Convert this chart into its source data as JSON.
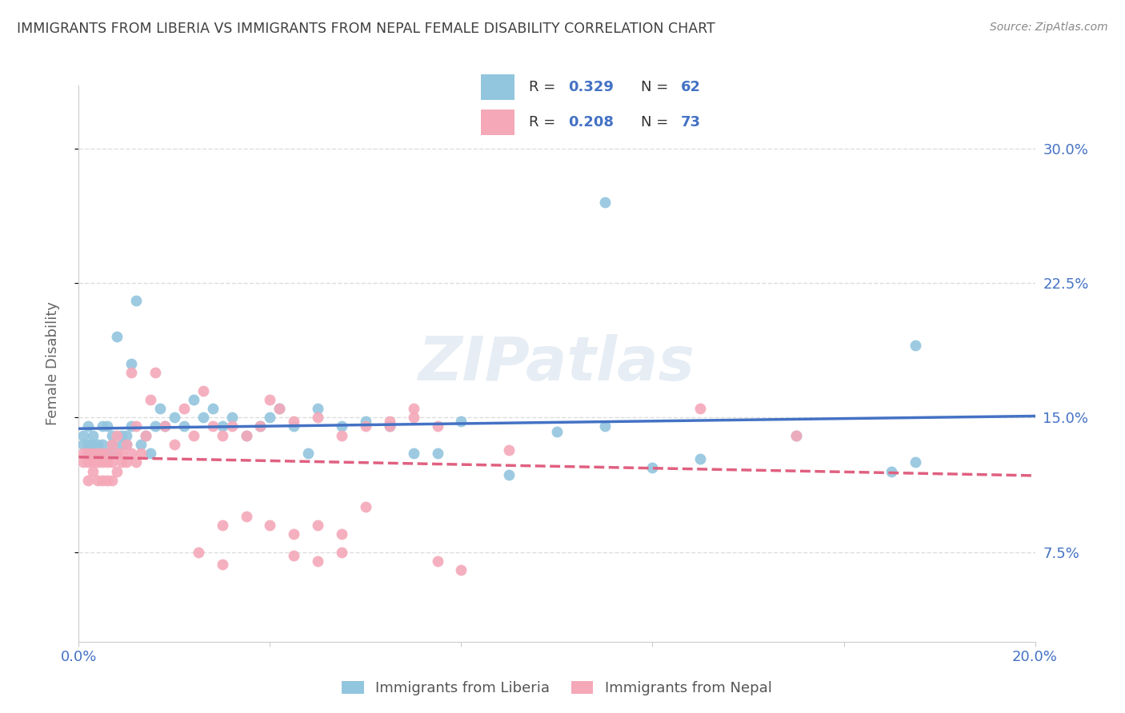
{
  "title": "IMMIGRANTS FROM LIBERIA VS IMMIGRANTS FROM NEPAL FEMALE DISABILITY CORRELATION CHART",
  "source": "Source: ZipAtlas.com",
  "ylabel": "Female Disability",
  "yticks": [
    "7.5%",
    "15.0%",
    "22.5%",
    "30.0%"
  ],
  "ytick_vals": [
    0.075,
    0.15,
    0.225,
    0.3
  ],
  "xlim": [
    0.0,
    0.2
  ],
  "ylim": [
    0.025,
    0.335
  ],
  "liberia_color": "#92c5de",
  "liberia_line_color": "#4472c4",
  "nepal_color": "#f4a8b8",
  "nepal_line_color": "#e06080",
  "liberia_R": 0.329,
  "liberia_N": 62,
  "nepal_R": 0.208,
  "nepal_N": 73,
  "legend_liberia": "Immigrants from Liberia",
  "legend_nepal": "Immigrants from Nepal",
  "background_color": "#ffffff",
  "grid_color": "#dddddd",
  "text_color_blue": "#4472c4",
  "title_color": "#404040",
  "watermark": "ZIPatlas",
  "liberia_x": [
    0.001,
    0.001,
    0.002,
    0.002,
    0.002,
    0.003,
    0.003,
    0.003,
    0.004,
    0.004,
    0.005,
    0.005,
    0.005,
    0.006,
    0.006,
    0.007,
    0.007,
    0.008,
    0.008,
    0.009,
    0.009,
    0.01,
    0.01,
    0.011,
    0.011,
    0.012,
    0.013,
    0.014,
    0.015,
    0.016,
    0.017,
    0.018,
    0.02,
    0.022,
    0.024,
    0.026,
    0.028,
    0.03,
    0.032,
    0.035,
    0.038,
    0.04,
    0.042,
    0.045,
    0.048,
    0.05,
    0.055,
    0.06,
    0.065,
    0.07,
    0.075,
    0.08,
    0.09,
    0.1,
    0.11,
    0.12,
    0.13,
    0.15,
    0.17,
    0.175,
    0.11,
    0.175
  ],
  "liberia_y": [
    0.14,
    0.135,
    0.145,
    0.13,
    0.135,
    0.135,
    0.13,
    0.14,
    0.13,
    0.135,
    0.145,
    0.13,
    0.135,
    0.145,
    0.13,
    0.135,
    0.14,
    0.195,
    0.13,
    0.135,
    0.14,
    0.135,
    0.14,
    0.145,
    0.18,
    0.215,
    0.135,
    0.14,
    0.13,
    0.145,
    0.155,
    0.145,
    0.15,
    0.145,
    0.16,
    0.15,
    0.155,
    0.145,
    0.15,
    0.14,
    0.145,
    0.15,
    0.155,
    0.145,
    0.13,
    0.155,
    0.145,
    0.148,
    0.145,
    0.13,
    0.13,
    0.148,
    0.118,
    0.142,
    0.145,
    0.122,
    0.127,
    0.14,
    0.12,
    0.19,
    0.27,
    0.125
  ],
  "nepal_x": [
    0.001,
    0.001,
    0.002,
    0.002,
    0.002,
    0.003,
    0.003,
    0.003,
    0.004,
    0.004,
    0.004,
    0.005,
    0.005,
    0.005,
    0.006,
    0.006,
    0.006,
    0.007,
    0.007,
    0.007,
    0.008,
    0.008,
    0.008,
    0.009,
    0.009,
    0.01,
    0.01,
    0.011,
    0.011,
    0.012,
    0.012,
    0.013,
    0.014,
    0.015,
    0.016,
    0.018,
    0.02,
    0.022,
    0.024,
    0.026,
    0.028,
    0.03,
    0.032,
    0.035,
    0.038,
    0.04,
    0.042,
    0.045,
    0.05,
    0.055,
    0.06,
    0.065,
    0.07,
    0.075,
    0.03,
    0.035,
    0.04,
    0.045,
    0.05,
    0.055,
    0.025,
    0.03,
    0.045,
    0.05,
    0.055,
    0.06,
    0.065,
    0.07,
    0.075,
    0.08,
    0.09,
    0.13,
    0.15
  ],
  "nepal_y": [
    0.13,
    0.125,
    0.13,
    0.125,
    0.115,
    0.13,
    0.125,
    0.12,
    0.13,
    0.125,
    0.115,
    0.13,
    0.125,
    0.115,
    0.13,
    0.125,
    0.115,
    0.135,
    0.125,
    0.115,
    0.14,
    0.13,
    0.12,
    0.13,
    0.125,
    0.135,
    0.125,
    0.175,
    0.13,
    0.145,
    0.125,
    0.13,
    0.14,
    0.16,
    0.175,
    0.145,
    0.135,
    0.155,
    0.14,
    0.165,
    0.145,
    0.14,
    0.145,
    0.14,
    0.145,
    0.16,
    0.155,
    0.148,
    0.15,
    0.14,
    0.145,
    0.148,
    0.155,
    0.145,
    0.09,
    0.095,
    0.09,
    0.085,
    0.09,
    0.085,
    0.075,
    0.068,
    0.073,
    0.07,
    0.075,
    0.1,
    0.145,
    0.15,
    0.07,
    0.065,
    0.132,
    0.155,
    0.14
  ]
}
